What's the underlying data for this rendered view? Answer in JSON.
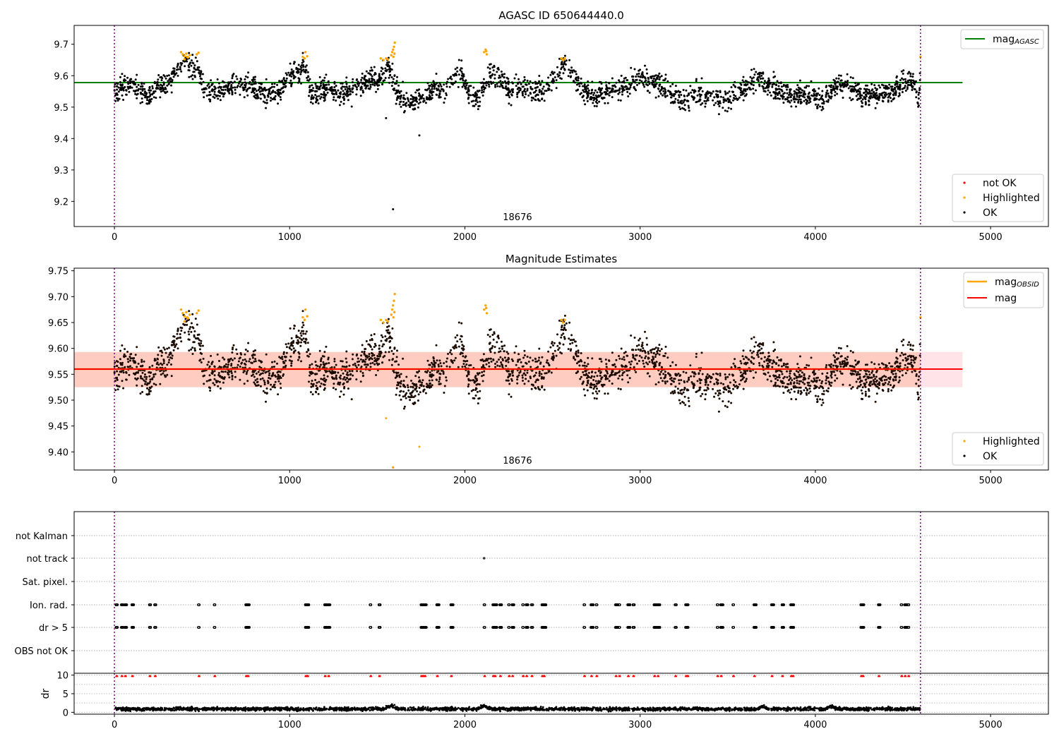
{
  "chart_data": [
    {
      "type": "scatter",
      "title": "AGASC ID 650644440.0",
      "xlim": [
        -230,
        5330
      ],
      "ylim": [
        9.12,
        9.76
      ],
      "x_ticks": [
        0,
        1000,
        2000,
        3000,
        4000,
        5000
      ],
      "y_ticks": [
        9.2,
        9.3,
        9.4,
        9.5,
        9.6,
        9.7
      ],
      "obsid_label": {
        "text": "18676",
        "x": 2300
      },
      "vlines": [
        0,
        4600
      ],
      "hlines": [
        {
          "name": "mag",
          "subscript": "AGASC",
          "y": 9.578,
          "x_range": [
            -230,
            4840
          ],
          "color": "#008000"
        }
      ],
      "legend_lines": {
        "position": "top-right"
      },
      "legend_points": {
        "position": "lower-right",
        "entries": [
          {
            "label": "not OK",
            "color": "#ff0000"
          },
          {
            "label": "Highlighted",
            "color": "#ffa500"
          },
          {
            "label": "OK",
            "color": "#000000"
          }
        ]
      },
      "series": [
        {
          "name": "OK",
          "color": "#000000",
          "mean_profile": [
            [
              0,
              9.555
            ],
            [
              60,
              9.568
            ],
            [
              120,
              9.56
            ],
            [
              200,
              9.535
            ],
            [
              260,
              9.572
            ],
            [
              320,
              9.575
            ],
            [
              360,
              9.632
            ],
            [
              420,
              9.64
            ],
            [
              480,
              9.612
            ],
            [
              520,
              9.552
            ],
            [
              600,
              9.548
            ],
            [
              680,
              9.568
            ],
            [
              760,
              9.565
            ],
            [
              840,
              9.548
            ],
            [
              920,
              9.535
            ],
            [
              960,
              9.56
            ],
            [
              1000,
              9.6
            ],
            [
              1060,
              9.62
            ],
            [
              1090,
              9.635
            ],
            [
              1120,
              9.535
            ],
            [
              1200,
              9.565
            ],
            [
              1280,
              9.545
            ],
            [
              1340,
              9.54
            ],
            [
              1400,
              9.57
            ],
            [
              1460,
              9.595
            ],
            [
              1500,
              9.58
            ],
            [
              1550,
              9.625
            ],
            [
              1580,
              9.61
            ],
            [
              1620,
              9.535
            ],
            [
              1680,
              9.515
            ],
            [
              1760,
              9.53
            ],
            [
              1820,
              9.565
            ],
            [
              1880,
              9.55
            ],
            [
              1940,
              9.595
            ],
            [
              1980,
              9.61
            ],
            [
              2020,
              9.545
            ],
            [
              2080,
              9.525
            ],
            [
              2120,
              9.58
            ],
            [
              2160,
              9.6
            ],
            [
              2220,
              9.585
            ],
            [
              2260,
              9.545
            ],
            [
              2320,
              9.56
            ],
            [
              2400,
              9.555
            ],
            [
              2460,
              9.555
            ],
            [
              2520,
              9.595
            ],
            [
              2560,
              9.635
            ],
            [
              2620,
              9.61
            ],
            [
              2680,
              9.545
            ],
            [
              2760,
              9.54
            ],
            [
              2840,
              9.558
            ],
            [
              2920,
              9.565
            ],
            [
              3000,
              9.595
            ],
            [
              3060,
              9.58
            ],
            [
              3100,
              9.575
            ],
            [
              3160,
              9.545
            ],
            [
              3240,
              9.52
            ],
            [
              3300,
              9.535
            ],
            [
              3380,
              9.545
            ],
            [
              3460,
              9.52
            ],
            [
              3520,
              9.535
            ],
            [
              3600,
              9.565
            ],
            [
              3680,
              9.59
            ],
            [
              3740,
              9.57
            ],
            [
              3820,
              9.545
            ],
            [
              3900,
              9.54
            ],
            [
              3980,
              9.54
            ],
            [
              4040,
              9.52
            ],
            [
              4100,
              9.565
            ],
            [
              4160,
              9.575
            ],
            [
              4220,
              9.56
            ],
            [
              4280,
              9.535
            ],
            [
              4360,
              9.545
            ],
            [
              4440,
              9.55
            ],
            [
              4500,
              9.575
            ],
            [
              4560,
              9.58
            ],
            [
              4590,
              9.52
            ],
            [
              4600,
              9.635
            ]
          ],
          "n_points": 2700,
          "spread": 0.018,
          "outliers": [
            [
              1550,
              9.465
            ],
            [
              1740,
              9.41
            ],
            [
              1590,
              9.175
            ]
          ]
        },
        {
          "name": "Highlighted",
          "color": "#ffa500",
          "points": [
            [
              380,
              9.675
            ],
            [
              390,
              9.668
            ],
            [
              400,
              9.662
            ],
            [
              410,
              9.67
            ],
            [
              420,
              9.658
            ],
            [
              430,
              9.665
            ],
            [
              400,
              9.652
            ],
            [
              415,
              9.66
            ],
            [
              470,
              9.668
            ],
            [
              480,
              9.673
            ],
            [
              1075,
              9.66
            ],
            [
              1085,
              9.655
            ],
            [
              1090,
              9.675
            ],
            [
              1100,
              9.662
            ],
            [
              1520,
              9.655
            ],
            [
              1535,
              9.65
            ],
            [
              1550,
              9.655
            ],
            [
              1560,
              9.652
            ],
            [
              1580,
              9.665
            ],
            [
              1585,
              9.675
            ],
            [
              1590,
              9.683
            ],
            [
              1595,
              9.692
            ],
            [
              1600,
              9.705
            ],
            [
              1598,
              9.67
            ],
            [
              1592,
              9.66
            ],
            [
              2110,
              9.675
            ],
            [
              2118,
              9.683
            ],
            [
              2122,
              9.678
            ],
            [
              2125,
              9.668
            ],
            [
              2550,
              9.655
            ],
            [
              2560,
              9.65
            ],
            [
              2570,
              9.655
            ],
            [
              4600,
              9.66
            ]
          ]
        }
      ]
    },
    {
      "type": "scatter",
      "title": "Magnitude Estimates",
      "xlim": [
        -230,
        5330
      ],
      "ylim": [
        9.365,
        9.755
      ],
      "x_ticks": [
        0,
        1000,
        2000,
        3000,
        4000,
        5000
      ],
      "y_ticks": [
        9.4,
        9.45,
        9.5,
        9.55,
        9.6,
        9.65,
        9.7,
        9.75
      ],
      "obsid_label": {
        "text": "18676",
        "x": 2300
      },
      "vlines": [
        0,
        4600
      ],
      "hlines": [
        {
          "name": "mag",
          "subscript": "OBSID",
          "y": 9.56,
          "x_range": [
            -230,
            4600
          ],
          "color": "#ffa500"
        },
        {
          "name": "mag",
          "subscript": "",
          "y": 9.56,
          "x_range": [
            -230,
            4840
          ],
          "color": "#ff0000"
        }
      ],
      "bands": [
        {
          "y_range": [
            9.525,
            9.593
          ],
          "x_range": [
            -230,
            4840
          ],
          "color": "#ffc0cb",
          "opacity": 0.45
        },
        {
          "y_range": [
            9.525,
            9.593
          ],
          "x_range": [
            -230,
            4600
          ],
          "color": "#ffa07a",
          "opacity": 0.35
        }
      ],
      "legend_lines": {
        "position": "top-right"
      },
      "legend_points": {
        "position": "lower-right",
        "entries": [
          {
            "label": "Highlighted",
            "color": "#ffa500"
          },
          {
            "label": "OK",
            "color": "#000000"
          }
        ]
      },
      "series": [
        {
          "name": "OK",
          "color": "#000000",
          "profile_ref": 0,
          "n_points": 2700,
          "spread": 0.018,
          "outliers": [
            [
              1550,
              9.465
            ],
            [
              1740,
              9.41
            ]
          ]
        },
        {
          "name": "Highlighted",
          "color": "#ffa500",
          "points_ref": 0,
          "extra_points": [
            [
              1590,
              9.37
            ]
          ]
        }
      ]
    },
    {
      "type": "scatter",
      "title": "",
      "xlim": [
        -230,
        5330
      ],
      "categories": [
        "not Kalman",
        "not track",
        "Sat. pixel.",
        "Ion. rad.",
        "dr > 5",
        "OBS not OK"
      ],
      "vlines": [
        0,
        4600
      ],
      "flag_clusters": [
        10,
        40,
        60,
        100,
        200,
        230,
        480,
        570,
        750,
        760,
        1090,
        1100,
        1200,
        1220,
        1460,
        1510,
        1750,
        1760,
        1770,
        1840,
        1920,
        2110,
        2160,
        2170,
        2200,
        2250,
        2270,
        2330,
        2350,
        2380,
        2440,
        2450,
        2680,
        2720,
        2750,
        2860,
        2880,
        2930,
        2960,
        3080,
        3100,
        3200,
        3260,
        3270,
        3440,
        3460,
        3530,
        3650,
        3750,
        3810,
        3860,
        3870,
        4260,
        4270,
        4360,
        4490,
        4510,
        4530
      ],
      "not_track_points": [
        [
          2110,
          "not track"
        ]
      ]
    },
    {
      "type": "scatter",
      "title": "",
      "ylabel": "dr",
      "xlim": [
        -230,
        5330
      ],
      "ylim": [
        -0.5,
        10.5
      ],
      "x_ticks": [
        0,
        1000,
        2000,
        3000,
        4000,
        5000
      ],
      "y_ticks": [
        0,
        5,
        10
      ],
      "vlines": [
        0,
        4600
      ],
      "series": [
        {
          "name": "dr",
          "color": "#000000",
          "n_points": 2700,
          "baseline": 0.9,
          "spread": 0.45,
          "bumps": [
            [
              1580,
              1.8
            ],
            [
              2110,
              1.7
            ],
            [
              3700,
              1.5
            ],
            [
              4090,
              1.6
            ]
          ]
        },
        {
          "name": "dr > 5",
          "color": "#ff0000",
          "y": 9.8,
          "cluster_ref": 2
        }
      ]
    }
  ]
}
